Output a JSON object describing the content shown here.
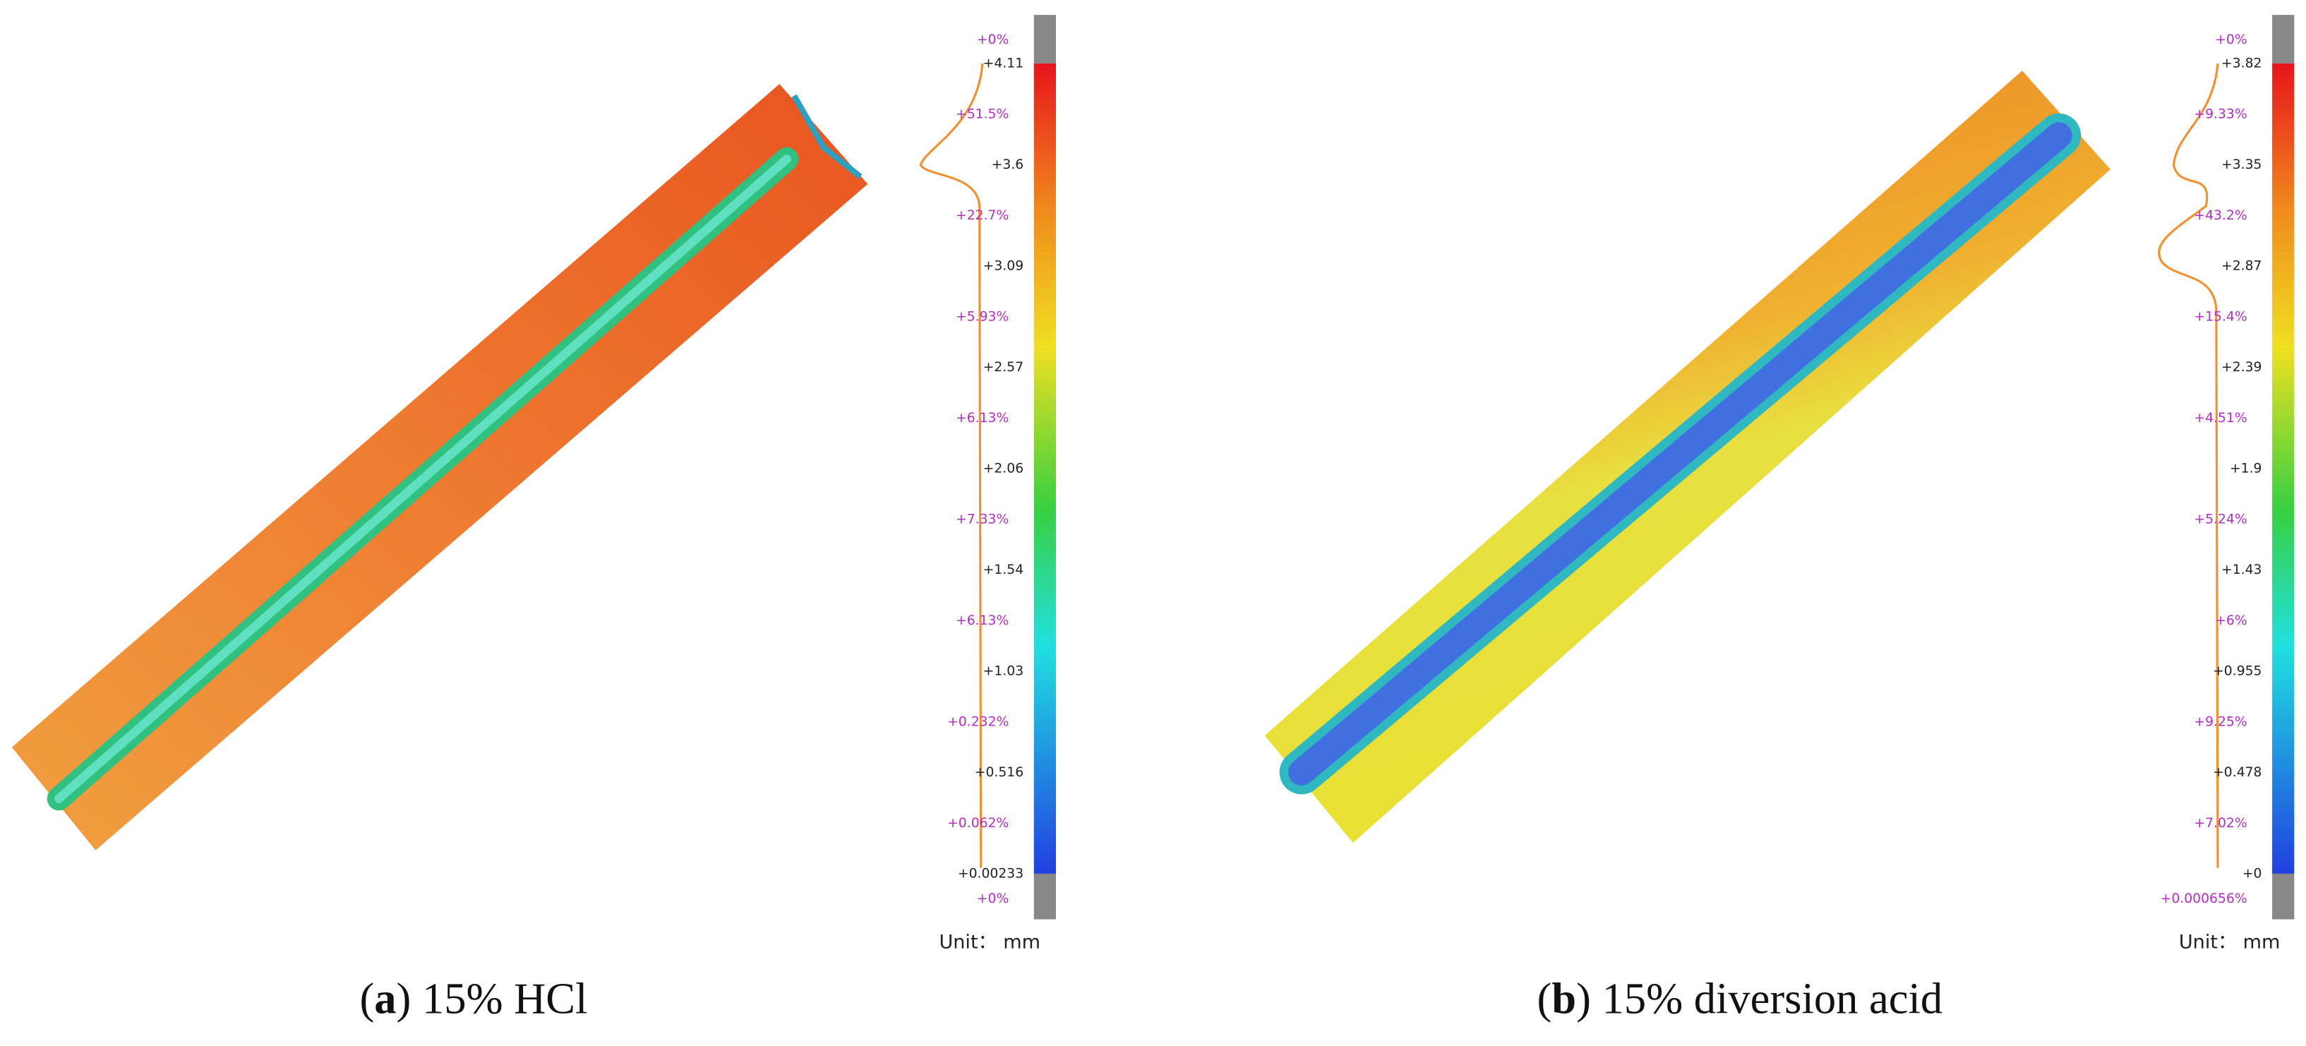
{
  "panels": [
    {
      "caption_parts": [
        "(",
        "a",
        ") 15% HCl"
      ],
      "scale_labels": [
        "+4.11",
        "+3.6",
        "+3.09",
        "+2.57",
        "+2.06",
        "+1.54",
        "+1.03",
        "+0.516",
        "+0.00233"
      ],
      "percent_labels": [
        "+0%",
        "+51.5%",
        "+22.7%",
        "+5.93%",
        "+6.13%",
        "+7.33%",
        "+6.13%",
        "+0.232%",
        "+0.062%",
        "+0%"
      ],
      "unit": "Unit： mm"
    },
    {
      "caption_parts": [
        "(",
        "b",
        ") 15% diversion acid"
      ],
      "scale_labels": [
        "+3.82",
        "+3.35",
        "+2.87",
        "+2.39",
        "+1.9",
        "+1.43",
        "+0.955",
        "+0.478",
        "+0"
      ],
      "percent_labels": [
        "+0%",
        "+9.33%",
        "+43.2%",
        "+15.4%",
        "+4.51%",
        "+5.24%",
        "+6%",
        "+9.25%",
        "+7.02%",
        "+0.000656%"
      ],
      "unit": "Unit： mm"
    }
  ]
}
